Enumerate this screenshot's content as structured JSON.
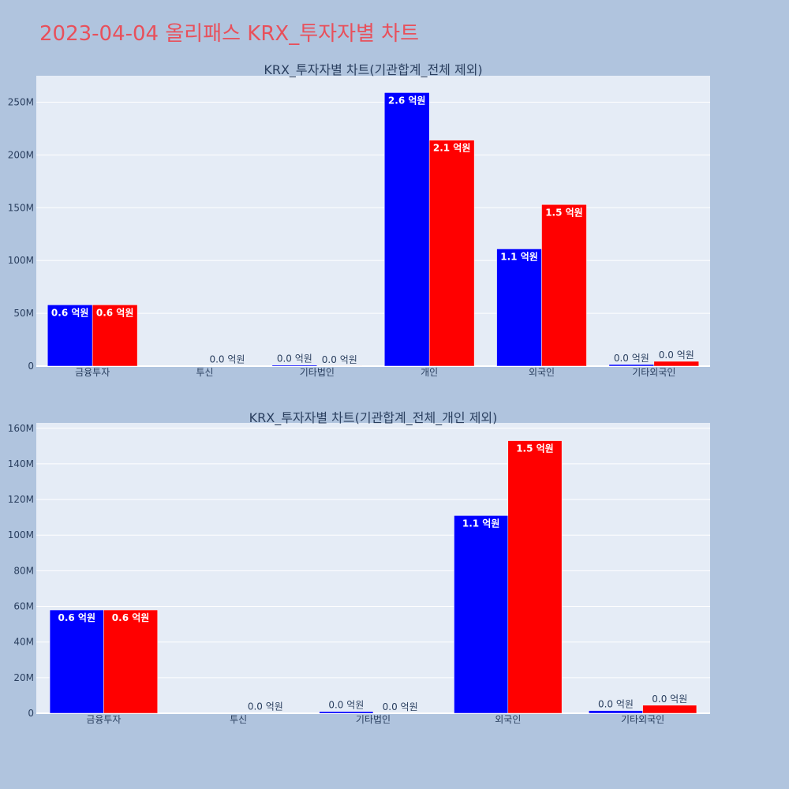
{
  "page_title": "2023-04-04 올리패스 KRX_투자자별 차트",
  "colors": {
    "background": "#b0c4de",
    "plot_bg": "#e5ecf6",
    "series_a": "#0000ff",
    "series_b": "#ff0000",
    "title": "#e8505b"
  },
  "chart_data": [
    {
      "type": "bar",
      "title": "KRX_투자자별 차트(기관합계_전체 제외)",
      "categories": [
        "금융투자",
        "투신",
        "기타법인",
        "개인",
        "외국인",
        "기타외국인"
      ],
      "series": [
        {
          "name": "series-1",
          "color": "#0000ff",
          "values": [
            58000000,
            0,
            1000000,
            259000000,
            111000000,
            1500000
          ],
          "labels": [
            "0.6 억원",
            "",
            "0.0 억원",
            "2.6 억원",
            "1.1 억원",
            "0.0 억원"
          ]
        },
        {
          "name": "series-2",
          "color": "#ff0000",
          "values": [
            58000000,
            200000,
            100000,
            214000000,
            153000000,
            4500000
          ],
          "labels": [
            "0.6 억원",
            "0.0 억원",
            "0.0 억원",
            "2.1 억원",
            "1.5 억원",
            "0.0 억원"
          ]
        }
      ],
      "yticks": [
        0,
        50000000,
        100000000,
        150000000,
        200000000,
        250000000
      ],
      "ytick_labels": [
        "0",
        "50M",
        "100M",
        "150M",
        "200M",
        "250M"
      ],
      "ylim": [
        0,
        275000000
      ]
    },
    {
      "type": "bar",
      "title": "KRX_투자자별 차트(기관합계_전체_개인 제외)",
      "categories": [
        "금융투자",
        "투신",
        "기타법인",
        "외국인",
        "기타외국인"
      ],
      "series": [
        {
          "name": "series-1",
          "color": "#0000ff",
          "values": [
            58000000,
            0,
            1000000,
            111000000,
            1500000
          ],
          "labels": [
            "0.6 억원",
            "",
            "0.0 억원",
            "1.1 억원",
            "0.0 억원"
          ]
        },
        {
          "name": "series-2",
          "color": "#ff0000",
          "values": [
            58000000,
            200000,
            100000,
            153000000,
            4500000
          ],
          "labels": [
            "0.6 억원",
            "0.0 억원",
            "0.0 억원",
            "1.5 억원",
            "0.0 억원"
          ]
        }
      ],
      "yticks": [
        0,
        20000000,
        40000000,
        60000000,
        80000000,
        100000000,
        120000000,
        140000000,
        160000000
      ],
      "ytick_labels": [
        "0",
        "20M",
        "40M",
        "60M",
        "80M",
        "100M",
        "120M",
        "140M",
        "160M"
      ],
      "ylim": [
        0,
        163000000
      ]
    }
  ]
}
